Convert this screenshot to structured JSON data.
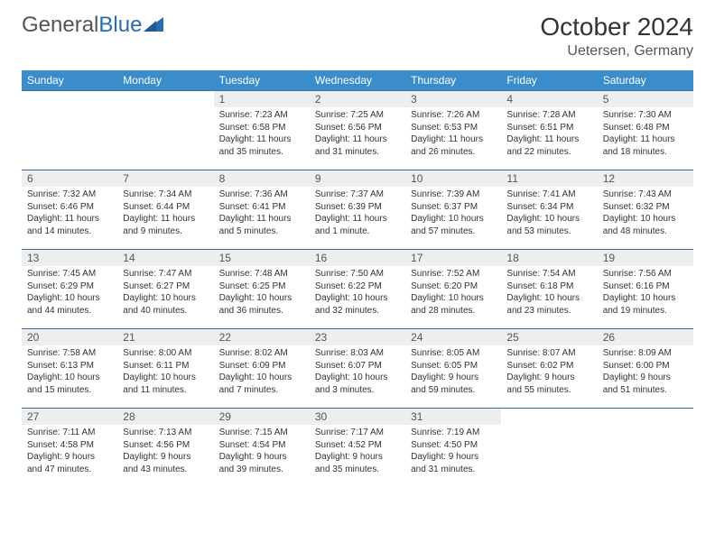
{
  "logo": {
    "part1": "General",
    "part2": "Blue"
  },
  "title": "October 2024",
  "subtitle": "Uetersen, Germany",
  "colors": {
    "header_bg": "#3b8ccb",
    "header_text": "#ffffff",
    "daynum_bg": "#eceef0",
    "row_border": "#3b6fa0",
    "logo_gray": "#555555",
    "logo_blue": "#2a6cb0"
  },
  "weekdays": [
    "Sunday",
    "Monday",
    "Tuesday",
    "Wednesday",
    "Thursday",
    "Friday",
    "Saturday"
  ],
  "weeks": [
    [
      null,
      null,
      {
        "n": "1",
        "sr": "7:23 AM",
        "ss": "6:58 PM",
        "dl": "11 hours and 35 minutes."
      },
      {
        "n": "2",
        "sr": "7:25 AM",
        "ss": "6:56 PM",
        "dl": "11 hours and 31 minutes."
      },
      {
        "n": "3",
        "sr": "7:26 AM",
        "ss": "6:53 PM",
        "dl": "11 hours and 26 minutes."
      },
      {
        "n": "4",
        "sr": "7:28 AM",
        "ss": "6:51 PM",
        "dl": "11 hours and 22 minutes."
      },
      {
        "n": "5",
        "sr": "7:30 AM",
        "ss": "6:48 PM",
        "dl": "11 hours and 18 minutes."
      }
    ],
    [
      {
        "n": "6",
        "sr": "7:32 AM",
        "ss": "6:46 PM",
        "dl": "11 hours and 14 minutes."
      },
      {
        "n": "7",
        "sr": "7:34 AM",
        "ss": "6:44 PM",
        "dl": "11 hours and 9 minutes."
      },
      {
        "n": "8",
        "sr": "7:36 AM",
        "ss": "6:41 PM",
        "dl": "11 hours and 5 minutes."
      },
      {
        "n": "9",
        "sr": "7:37 AM",
        "ss": "6:39 PM",
        "dl": "11 hours and 1 minute."
      },
      {
        "n": "10",
        "sr": "7:39 AM",
        "ss": "6:37 PM",
        "dl": "10 hours and 57 minutes."
      },
      {
        "n": "11",
        "sr": "7:41 AM",
        "ss": "6:34 PM",
        "dl": "10 hours and 53 minutes."
      },
      {
        "n": "12",
        "sr": "7:43 AM",
        "ss": "6:32 PM",
        "dl": "10 hours and 48 minutes."
      }
    ],
    [
      {
        "n": "13",
        "sr": "7:45 AM",
        "ss": "6:29 PM",
        "dl": "10 hours and 44 minutes."
      },
      {
        "n": "14",
        "sr": "7:47 AM",
        "ss": "6:27 PM",
        "dl": "10 hours and 40 minutes."
      },
      {
        "n": "15",
        "sr": "7:48 AM",
        "ss": "6:25 PM",
        "dl": "10 hours and 36 minutes."
      },
      {
        "n": "16",
        "sr": "7:50 AM",
        "ss": "6:22 PM",
        "dl": "10 hours and 32 minutes."
      },
      {
        "n": "17",
        "sr": "7:52 AM",
        "ss": "6:20 PM",
        "dl": "10 hours and 28 minutes."
      },
      {
        "n": "18",
        "sr": "7:54 AM",
        "ss": "6:18 PM",
        "dl": "10 hours and 23 minutes."
      },
      {
        "n": "19",
        "sr": "7:56 AM",
        "ss": "6:16 PM",
        "dl": "10 hours and 19 minutes."
      }
    ],
    [
      {
        "n": "20",
        "sr": "7:58 AM",
        "ss": "6:13 PM",
        "dl": "10 hours and 15 minutes."
      },
      {
        "n": "21",
        "sr": "8:00 AM",
        "ss": "6:11 PM",
        "dl": "10 hours and 11 minutes."
      },
      {
        "n": "22",
        "sr": "8:02 AM",
        "ss": "6:09 PM",
        "dl": "10 hours and 7 minutes."
      },
      {
        "n": "23",
        "sr": "8:03 AM",
        "ss": "6:07 PM",
        "dl": "10 hours and 3 minutes."
      },
      {
        "n": "24",
        "sr": "8:05 AM",
        "ss": "6:05 PM",
        "dl": "9 hours and 59 minutes."
      },
      {
        "n": "25",
        "sr": "8:07 AM",
        "ss": "6:02 PM",
        "dl": "9 hours and 55 minutes."
      },
      {
        "n": "26",
        "sr": "8:09 AM",
        "ss": "6:00 PM",
        "dl": "9 hours and 51 minutes."
      }
    ],
    [
      {
        "n": "27",
        "sr": "7:11 AM",
        "ss": "4:58 PM",
        "dl": "9 hours and 47 minutes."
      },
      {
        "n": "28",
        "sr": "7:13 AM",
        "ss": "4:56 PM",
        "dl": "9 hours and 43 minutes."
      },
      {
        "n": "29",
        "sr": "7:15 AM",
        "ss": "4:54 PM",
        "dl": "9 hours and 39 minutes."
      },
      {
        "n": "30",
        "sr": "7:17 AM",
        "ss": "4:52 PM",
        "dl": "9 hours and 35 minutes."
      },
      {
        "n": "31",
        "sr": "7:19 AM",
        "ss": "4:50 PM",
        "dl": "9 hours and 31 minutes."
      },
      null,
      null
    ]
  ],
  "labels": {
    "sunrise": "Sunrise:",
    "sunset": "Sunset:",
    "daylight": "Daylight:"
  }
}
